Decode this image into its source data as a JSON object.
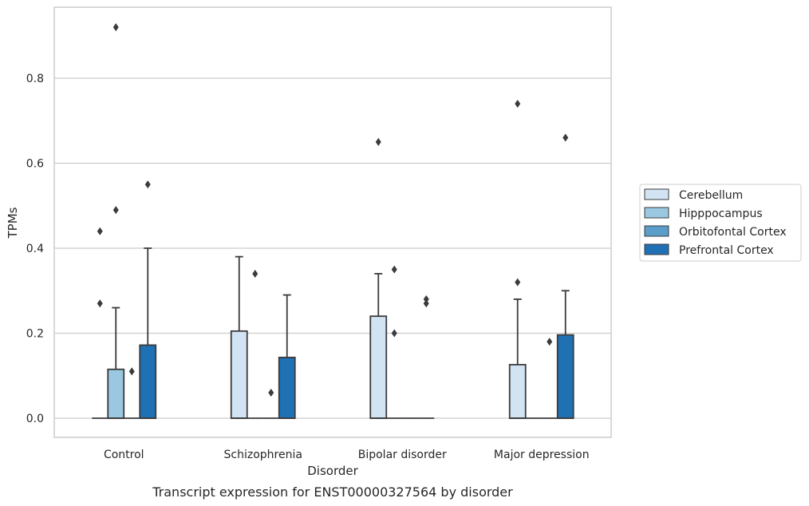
{
  "chart_data": {
    "type": "boxplot",
    "xlabel": "Disorder",
    "ylabel": "TPMs",
    "caption": "Transcript expression for ENST00000327564 by disorder",
    "ylim": [
      -0.045,
      0.97
    ],
    "yticks": [
      0.0,
      0.2,
      0.4,
      0.6,
      0.8
    ],
    "ytick_labels": [
      "0.0",
      "0.2",
      "0.4",
      "0.6",
      "0.8"
    ],
    "grid": "horizontal",
    "legend_position": "right",
    "categories": [
      "Control",
      "Schizophrenia",
      "Bipolar disorder",
      "Major depression"
    ],
    "series": [
      {
        "name": "Cerebellum",
        "color": "#d2e3f3",
        "boxes": [
          {
            "q1": 0,
            "median": 0,
            "q3": 0,
            "whisker_low": 0,
            "whisker_high": 0,
            "outliers": [
              0.44,
              0.27
            ]
          },
          {
            "q1": 0,
            "median": 0,
            "q3": 0.205,
            "whisker_low": 0,
            "whisker_high": 0.38,
            "outliers": []
          },
          {
            "q1": 0,
            "median": 0,
            "q3": 0.24,
            "whisker_low": 0,
            "whisker_high": 0.34,
            "outliers": [
              0.65
            ]
          },
          {
            "q1": 0,
            "median": 0,
            "q3": 0.126,
            "whisker_low": 0,
            "whisker_high": 0.28,
            "outliers": [
              0.74,
              0.32
            ]
          }
        ]
      },
      {
        "name": "Hipppocampus",
        "color": "#9ac8e0",
        "boxes": [
          {
            "q1": 0,
            "median": 0,
            "q3": 0.115,
            "whisker_low": 0,
            "whisker_high": 0.26,
            "outliers": [
              0.92,
              0.49
            ]
          },
          {
            "q1": 0,
            "median": 0,
            "q3": 0,
            "whisker_low": 0,
            "whisker_high": 0,
            "outliers": [
              0.34
            ]
          },
          {
            "q1": 0,
            "median": 0,
            "q3": 0,
            "whisker_low": 0,
            "whisker_high": 0,
            "outliers": [
              0.35,
              0.2
            ]
          },
          {
            "q1": 0,
            "median": 0,
            "q3": 0,
            "whisker_low": 0,
            "whisker_high": 0,
            "outliers": []
          }
        ]
      },
      {
        "name": "Orbitofontal Cortex",
        "color": "#5a9ec9",
        "boxes": [
          {
            "q1": 0,
            "median": 0,
            "q3": 0,
            "whisker_low": 0,
            "whisker_high": 0,
            "outliers": [
              0.11
            ]
          },
          {
            "q1": 0,
            "median": 0,
            "q3": 0,
            "whisker_low": 0,
            "whisker_high": 0,
            "outliers": [
              0.06
            ]
          },
          {
            "q1": 0,
            "median": 0,
            "q3": 0,
            "whisker_low": 0,
            "whisker_high": 0,
            "outliers": []
          },
          {
            "q1": 0,
            "median": 0,
            "q3": 0,
            "whisker_low": 0,
            "whisker_high": 0,
            "outliers": [
              0.18
            ]
          }
        ]
      },
      {
        "name": "Prefrontal Cortex",
        "color": "#2070b4",
        "boxes": [
          {
            "q1": 0,
            "median": 0,
            "q3": 0.172,
            "whisker_low": 0,
            "whisker_high": 0.4,
            "outliers": [
              0.55
            ]
          },
          {
            "q1": 0,
            "median": 0,
            "q3": 0.143,
            "whisker_low": 0,
            "whisker_high": 0.29,
            "outliers": []
          },
          {
            "q1": 0,
            "median": 0,
            "q3": 0,
            "whisker_low": 0,
            "whisker_high": 0,
            "outliers": [
              0.28,
              0.27
            ]
          },
          {
            "q1": 0,
            "median": 0,
            "q3": 0.196,
            "whisker_low": 0,
            "whisker_high": 0.3,
            "outliers": [
              0.66
            ]
          }
        ]
      }
    ]
  }
}
